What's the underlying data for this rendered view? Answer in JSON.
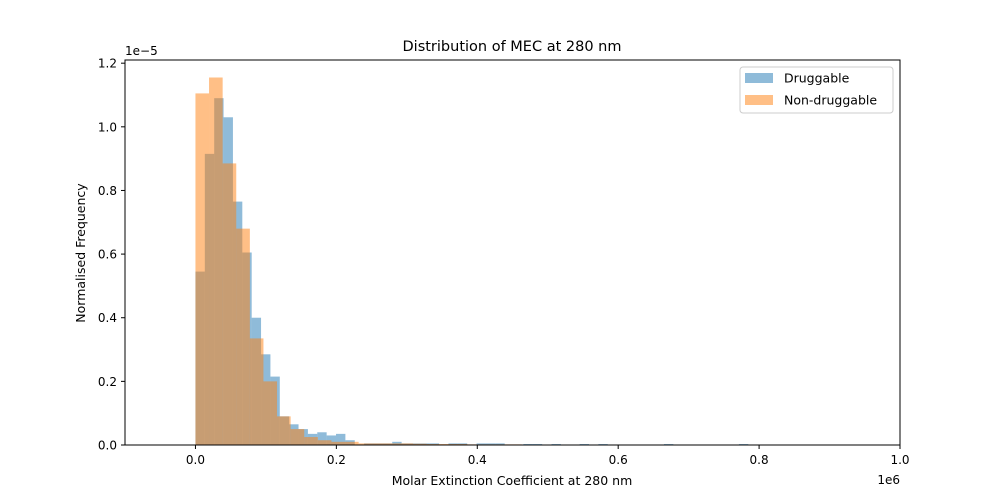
{
  "chart_data": {
    "type": "bar",
    "title": "Distribution of MEC at 280 nm",
    "xlabel": "Molar Extinction Coefficient at 280 nm",
    "ylabel": "Normalised Frequency",
    "x_offset_label": "1e6",
    "y_offset_label": "1e−5",
    "xlim": [
      -0.1,
      1.0
    ],
    "ylim": [
      0,
      1.21
    ],
    "xticks": [
      0.0,
      0.2,
      0.4,
      0.6,
      0.8,
      1.0
    ],
    "xtick_labels": [
      "0.0",
      "0.2",
      "0.4",
      "0.6",
      "0.8",
      "1.0"
    ],
    "yticks": [
      0.0,
      0.2,
      0.4,
      0.6,
      0.8,
      1.0,
      1.2
    ],
    "ytick_labels": [
      "0.0",
      "0.2",
      "0.4",
      "0.6",
      "0.8",
      "1.0",
      "1.2"
    ],
    "legend_position": "upper right",
    "series": [
      {
        "name": "Druggable",
        "color": "#1f77b4",
        "alpha": 0.5,
        "bin_edges": [
          0.0,
          0.0133,
          0.0266,
          0.0399,
          0.0532,
          0.0665,
          0.0798,
          0.0931,
          0.1064,
          0.1197,
          0.133,
          0.1463,
          0.1596,
          0.1729,
          0.1862,
          0.1995,
          0.2128,
          0.2261,
          0.2394,
          0.2527,
          0.266,
          0.2793,
          0.2926,
          0.3059,
          0.3192,
          0.3325,
          0.3458,
          0.3591,
          0.3724,
          0.3857,
          0.399,
          0.4123,
          0.4256,
          0.4389,
          0.4522,
          0.4655,
          0.4788,
          0.4921,
          0.5054,
          0.5187,
          0.532,
          0.5453,
          0.5586,
          0.5719,
          0.5852,
          0.5985,
          0.6118,
          0.6251,
          0.6384,
          0.6517,
          0.665,
          0.6783,
          0.6916,
          0.7049,
          0.7182,
          0.7315,
          0.7448,
          0.7581,
          0.7714,
          0.7847,
          0.798
        ],
        "values": [
          0.545,
          0.915,
          1.09,
          1.03,
          0.765,
          0.605,
          0.4,
          0.285,
          0.215,
          0.09,
          0.065,
          0.05,
          0.035,
          0.04,
          0.03,
          0.035,
          0.015,
          0.0,
          0.005,
          0.005,
          0.005,
          0.01,
          0.005,
          0.005,
          0.005,
          0.005,
          0.0,
          0.005,
          0.005,
          0.0,
          0.005,
          0.005,
          0.005,
          0.0,
          0.0,
          0.003,
          0.003,
          0.0,
          0.003,
          0.0,
          0.0,
          0.003,
          0.0,
          0.003,
          0.0,
          0.0,
          0.0,
          0.0,
          0.0,
          0.0,
          0.003,
          0.0,
          0.0,
          0.0,
          0.0,
          0.0,
          0.0,
          0.0,
          0.003,
          0.0
        ]
      },
      {
        "name": "Non-druggable",
        "color": "#ff7f0e",
        "alpha": 0.5,
        "bin_edges": [
          0.0,
          0.0193,
          0.0386,
          0.0579,
          0.0772,
          0.0965,
          0.1158,
          0.1351,
          0.1544,
          0.1737,
          0.193,
          0.2123,
          0.2316,
          0.2509,
          0.2702,
          0.2895,
          0.3088,
          0.3281,
          0.3474,
          0.3667,
          0.386,
          0.4053,
          0.4246,
          0.4439,
          0.4632,
          0.4825,
          0.5018,
          0.5211,
          0.5404,
          0.5597,
          0.579,
          0.5983
        ],
        "values": [
          1.105,
          1.155,
          0.885,
          0.68,
          0.335,
          0.2,
          0.09,
          0.05,
          0.025,
          0.015,
          0.01,
          0.01,
          0.005,
          0.005,
          0.005,
          0.005,
          0.004,
          0.003,
          0.003,
          0.003,
          0.002,
          0.002,
          0.002,
          0.002,
          0.001,
          0.001,
          0.001,
          0.001,
          0.001,
          0.001,
          0.001
        ]
      }
    ]
  }
}
